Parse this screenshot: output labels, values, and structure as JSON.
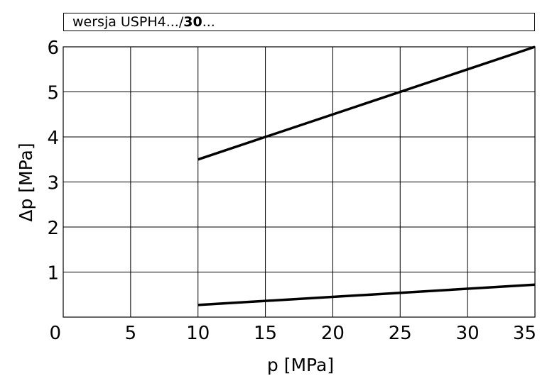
{
  "chart_data": {
    "type": "line",
    "title_prefix": "wersja  USPH4.../",
    "title_bold": "30",
    "title_suffix": "...",
    "xlabel": "p  [MPa]",
    "ylabel": "Δp [MPa]",
    "xlim": [
      0,
      35
    ],
    "ylim": [
      0,
      6
    ],
    "x_ticks": [
      0,
      5,
      10,
      15,
      20,
      25,
      30,
      35
    ],
    "y_ticks": [
      1,
      2,
      3,
      4,
      5,
      6
    ],
    "grid": true,
    "line_color": "#000000",
    "series": [
      {
        "x": [
          10,
          35
        ],
        "y": [
          3.5,
          6.0
        ]
      },
      {
        "x": [
          10,
          35
        ],
        "y": [
          0.27,
          0.72
        ]
      }
    ]
  }
}
